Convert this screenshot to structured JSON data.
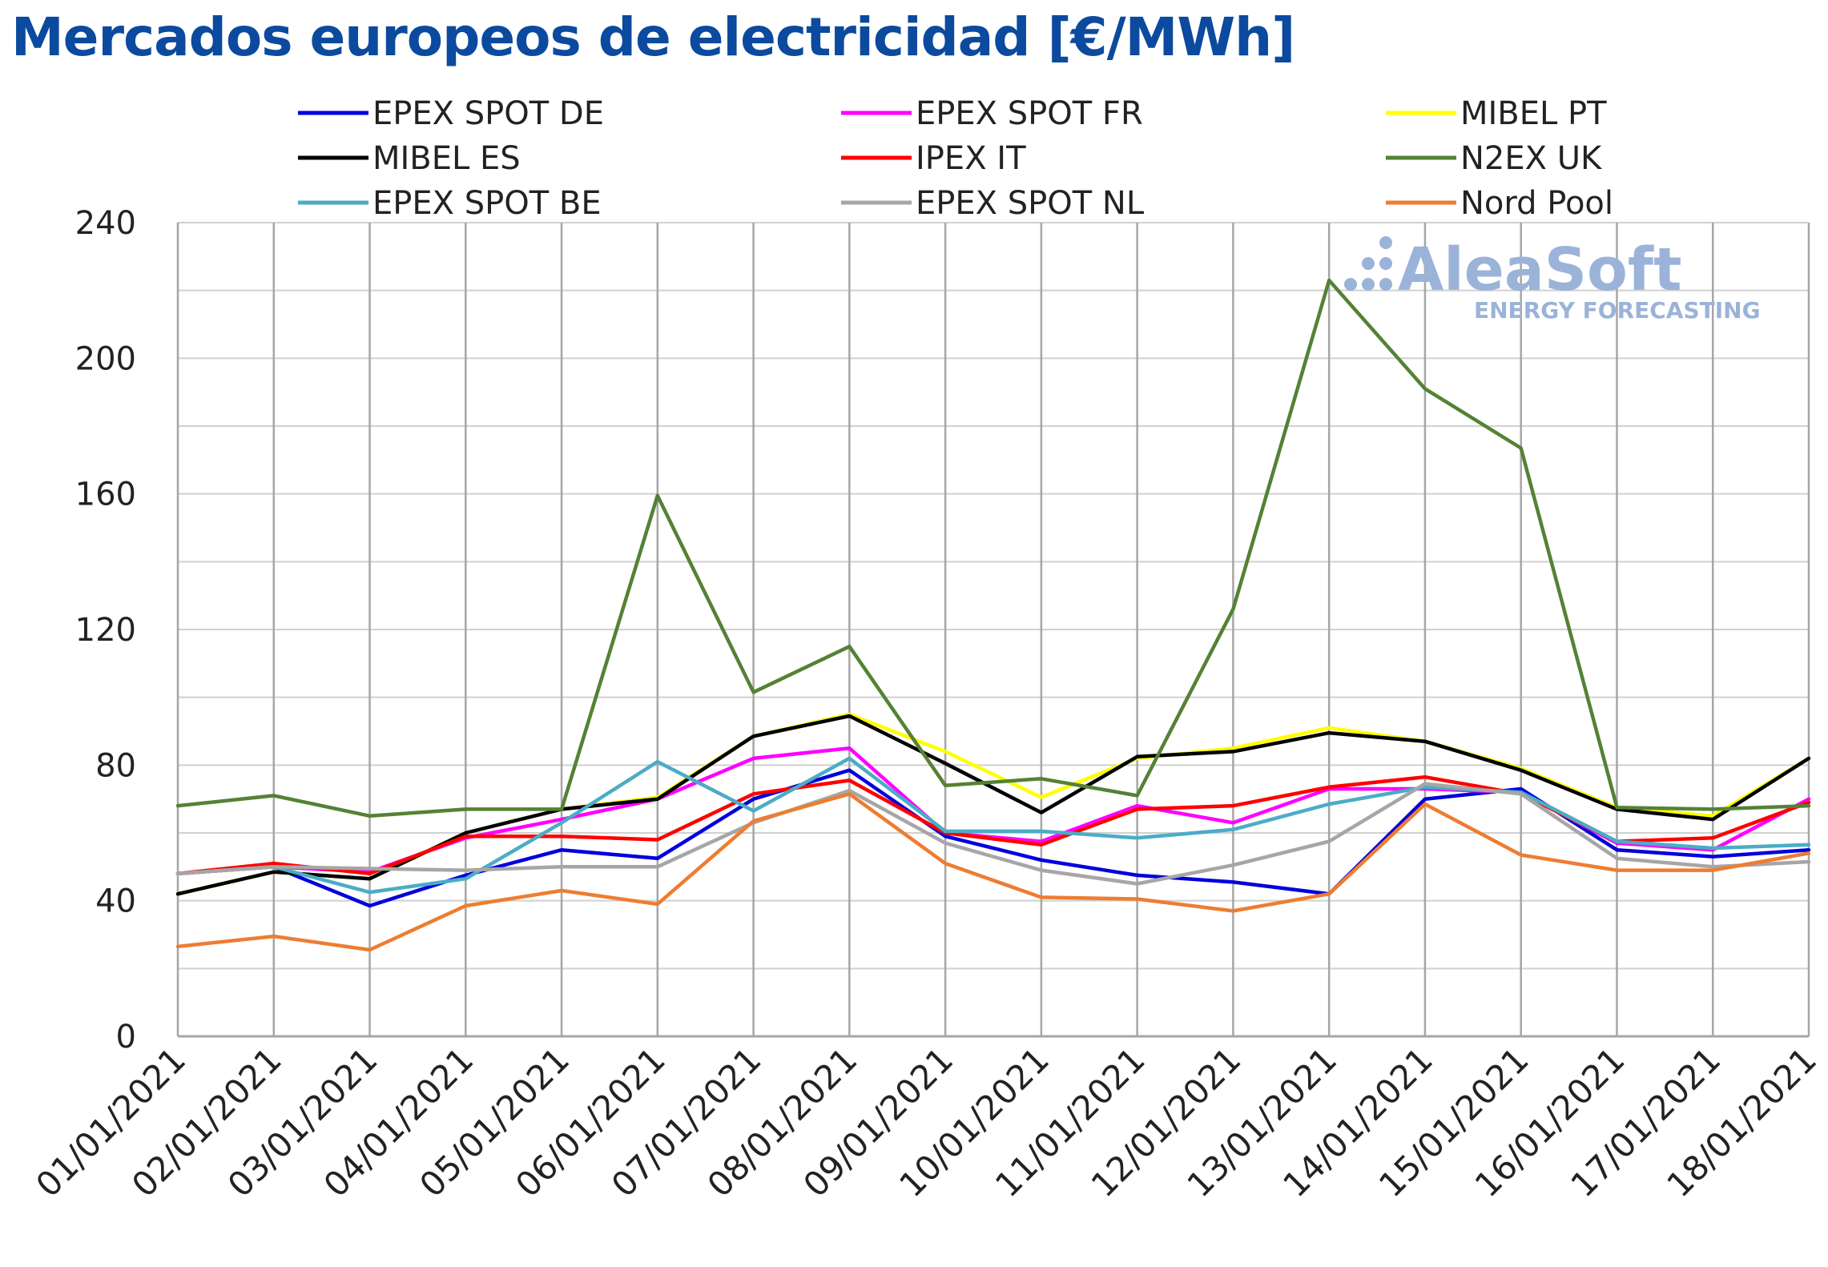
{
  "title": "Mercados europeos de electricidad [€/MWh]",
  "brand": {
    "name": "AleaSoft",
    "tagline": "ENERGY FORECASTING",
    "color": "#9bb3d9"
  },
  "chart_data": {
    "type": "line",
    "title": "Mercados europeos de electricidad [€/MWh]",
    "xlabel": "",
    "ylabel": "",
    "ylim": [
      0,
      240
    ],
    "yticks": [
      0,
      40,
      80,
      120,
      160,
      200,
      240
    ],
    "grid": true,
    "legend_position": "top",
    "x": [
      "01/01/2021",
      "02/01/2021",
      "03/01/2021",
      "04/01/2021",
      "05/01/2021",
      "06/01/2021",
      "07/01/2021",
      "08/01/2021",
      "09/01/2021",
      "10/01/2021",
      "11/01/2021",
      "12/01/2021",
      "13/01/2021",
      "14/01/2021",
      "15/01/2021",
      "16/01/2021",
      "17/01/2021",
      "18/01/2021"
    ],
    "series": [
      {
        "name": "EPEX SPOT DE",
        "color": "#0000dd",
        "values": [
          48.0,
          50.0,
          38.5,
          47.5,
          55.0,
          52.5,
          70.0,
          78.5,
          59.0,
          52.0,
          47.5,
          45.5,
          42.0,
          70.0,
          73.0,
          55.0,
          53.0,
          55.0
        ]
      },
      {
        "name": "EPEX SPOT FR",
        "color": "#ff00ff",
        "values": [
          48.0,
          50.0,
          48.5,
          58.5,
          64.0,
          70.0,
          82.0,
          85.0,
          60.0,
          57.5,
          68.0,
          63.0,
          73.0,
          73.0,
          72.0,
          57.0,
          55.0,
          70.0
        ]
      },
      {
        "name": "MIBEL PT",
        "color": "#ffff00",
        "values": [
          42.0,
          48.5,
          46.5,
          60.0,
          67.0,
          70.5,
          88.5,
          95.0,
          84.0,
          70.5,
          82.0,
          85.0,
          91.0,
          87.0,
          79.0,
          67.5,
          65.0,
          82.0
        ]
      },
      {
        "name": "MIBEL ES",
        "color": "#000000",
        "values": [
          42.0,
          48.5,
          46.5,
          60.0,
          67.0,
          70.0,
          88.5,
          94.5,
          80.5,
          66.0,
          82.5,
          84.0,
          89.5,
          87.0,
          78.5,
          67.0,
          64.0,
          82.0
        ]
      },
      {
        "name": "IPEX IT",
        "color": "#ff0000",
        "values": [
          48.0,
          51.0,
          48.0,
          59.0,
          59.0,
          58.0,
          71.5,
          75.5,
          60.0,
          56.5,
          67.0,
          68.0,
          73.5,
          76.5,
          71.5,
          57.5,
          58.5,
          69.0
        ]
      },
      {
        "name": "N2EX UK",
        "color": "#548235",
        "values": [
          68.0,
          71.0,
          65.0,
          67.0,
          67.0,
          159.5,
          101.5,
          115.0,
          74.0,
          76.0,
          71.0,
          126.0,
          223.0,
          191.0,
          173.5,
          67.5,
          67.0,
          68.0
        ]
      },
      {
        "name": "EPEX SPOT BE",
        "color": "#4bacc6",
        "values": [
          48.0,
          50.0,
          42.5,
          46.5,
          63.0,
          81.0,
          66.5,
          82.0,
          60.5,
          60.5,
          58.5,
          61.0,
          68.5,
          73.5,
          72.0,
          57.5,
          55.5,
          56.5
        ]
      },
      {
        "name": "EPEX SPOT NL",
        "color": "#a6a6a6",
        "values": [
          48.0,
          50.0,
          49.5,
          49.0,
          50.0,
          50.0,
          63.0,
          72.5,
          57.0,
          49.0,
          45.0,
          50.5,
          57.5,
          74.5,
          71.5,
          52.5,
          50.0,
          51.5
        ]
      },
      {
        "name": "Nord Pool",
        "color": "#ed7d31",
        "values": [
          26.5,
          29.5,
          25.5,
          38.5,
          43.0,
          39.0,
          63.5,
          71.5,
          51.0,
          41.0,
          40.5,
          37.0,
          42.0,
          68.5,
          53.5,
          49.0,
          49.0,
          54.0
        ]
      }
    ]
  }
}
